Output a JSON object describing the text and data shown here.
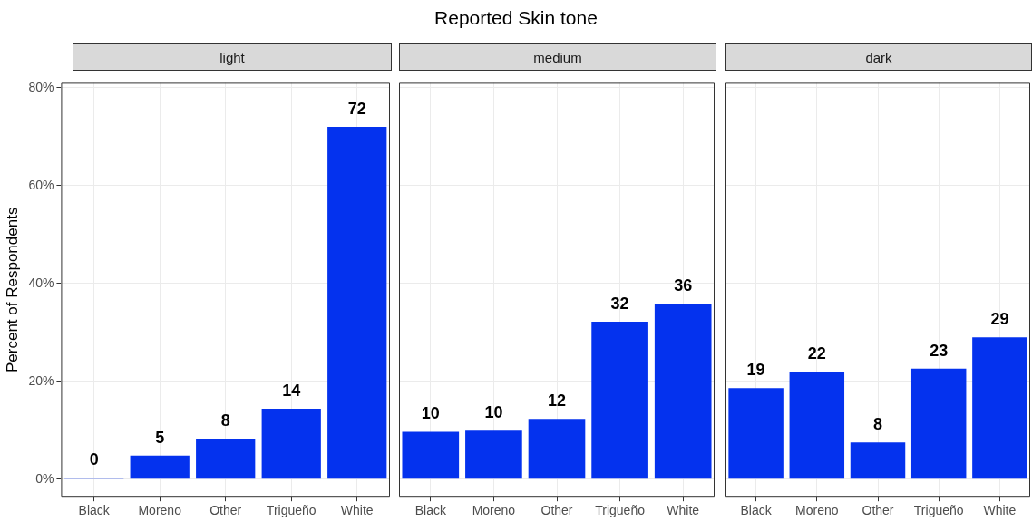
{
  "chart_data": [
    {
      "type": "bar",
      "title": "light",
      "annotations": [
        "Reported Skin tone"
      ],
      "ylabel": "Percent of Respondents",
      "categories": [
        "Black",
        "Moreno",
        "Other",
        "Trigueño",
        "White"
      ],
      "values": [
        0.3,
        4.8,
        8.3,
        14.4,
        72
      ],
      "value_labels": [
        "0",
        "5",
        "8",
        "14",
        "72"
      ],
      "color": "#0432ee",
      "ylim": [
        -3.6,
        81
      ],
      "yticks": [
        {
          "value": 0,
          "label": "0%"
        },
        {
          "value": 20,
          "label": "20%"
        },
        {
          "value": 40,
          "label": "40%"
        },
        {
          "value": 60,
          "label": "60%"
        },
        {
          "value": 80,
          "label": "80%"
        }
      ],
      "grid": true
    },
    {
      "type": "bar",
      "title": "medium",
      "categories": [
        "Black",
        "Moreno",
        "Other",
        "Trigueño",
        "White"
      ],
      "values": [
        9.7,
        9.9,
        12.3,
        32.2,
        35.9
      ],
      "value_labels": [
        "10",
        "10",
        "12",
        "32",
        "36"
      ],
      "color": "#0432ee",
      "ylim": [
        -3.6,
        81
      ],
      "yticks": [
        {
          "value": 0,
          "label": null
        },
        {
          "value": 20,
          "label": null
        },
        {
          "value": 40,
          "label": null
        },
        {
          "value": 60,
          "label": null
        },
        {
          "value": 80,
          "label": null
        }
      ],
      "grid": true,
      "tick_labels": "x"
    },
    {
      "type": "bar",
      "title": "dark",
      "categories": [
        "Black",
        "Moreno",
        "Other",
        "Trigueño",
        "White"
      ],
      "values": [
        18.6,
        21.9,
        7.5,
        22.6,
        29.0
      ],
      "value_labels": [
        "19",
        "22",
        "8",
        "23",
        "29"
      ],
      "color": "#0432ee",
      "ylim": [
        -3.6,
        81
      ],
      "yticks": [
        {
          "value": 0,
          "label": null
        },
        {
          "value": 20,
          "label": null
        },
        {
          "value": 40,
          "label": null
        },
        {
          "value": 60,
          "label": null
        },
        {
          "value": 80,
          "label": null
        }
      ],
      "grid": true,
      "tick_labels": "x"
    }
  ]
}
